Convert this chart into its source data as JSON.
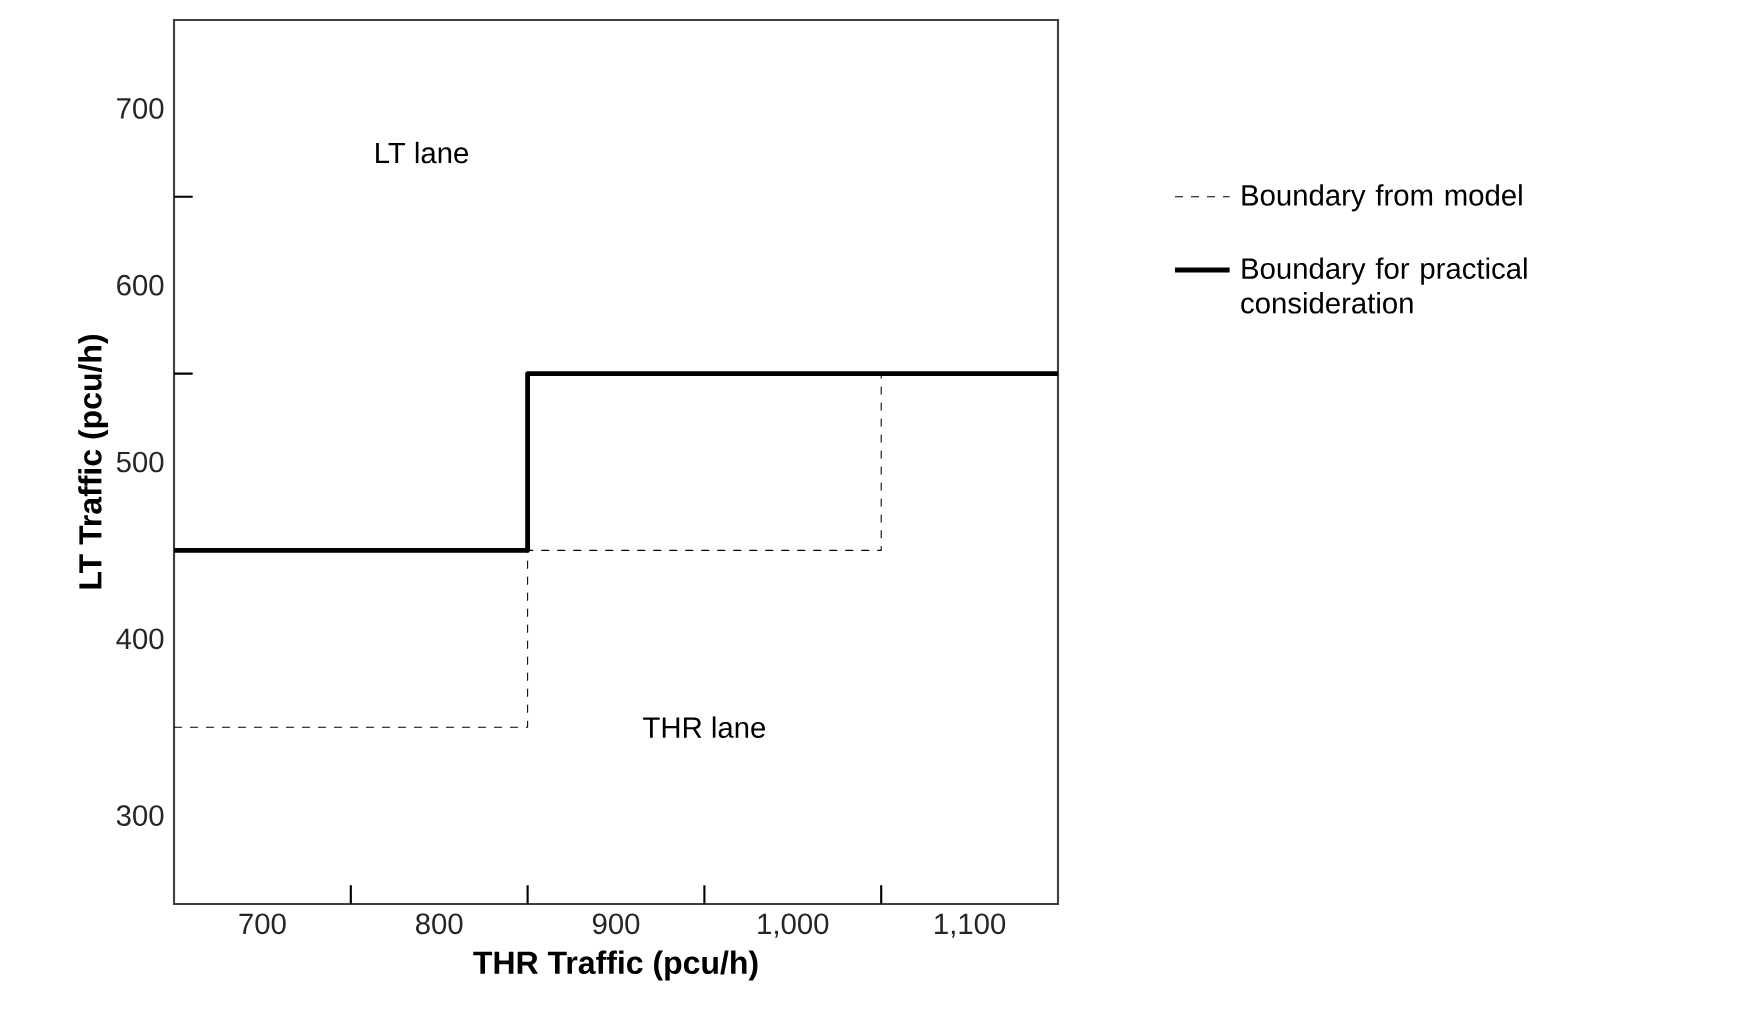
{
  "chart_data": {
    "type": "step",
    "xlabel": "THR Traffic (pcu/h)",
    "ylabel": "LT Traffic (pcu/h)",
    "xlim": [
      650,
      1150
    ],
    "ylim": [
      250,
      750
    ],
    "xticks": [
      700,
      {
        "value": 750,
        "label": null
      },
      800,
      {
        "value": 850,
        "label": null
      },
      900,
      {
        "value": 950,
        "label": null
      },
      {
        "value": 1000,
        "label": "1,000"
      },
      {
        "value": 1050,
        "label": null
      },
      {
        "value": 1100,
        "label": "1,100"
      }
    ],
    "yticks": [
      300,
      400,
      500,
      {
        "value": 550,
        "label": null
      },
      600,
      {
        "value": 650,
        "label": null
      },
      700
    ],
    "series": [
      {
        "name": "Boundary from model",
        "color": "#000000",
        "line_style": "dashed",
        "x": [
          650,
          850,
          1050,
          1150
        ],
        "values": [
          350,
          450,
          550,
          550
        ]
      },
      {
        "name": "Boundary for practical consideration",
        "color": "#000000",
        "line_style": "solid",
        "x": [
          650,
          850,
          1150
        ],
        "values": [
          450,
          550,
          550
        ]
      }
    ],
    "annotations": [
      "LT lane",
      "THR lane"
    ],
    "legend": "right",
    "grid": false,
    "marker": "none"
  }
}
